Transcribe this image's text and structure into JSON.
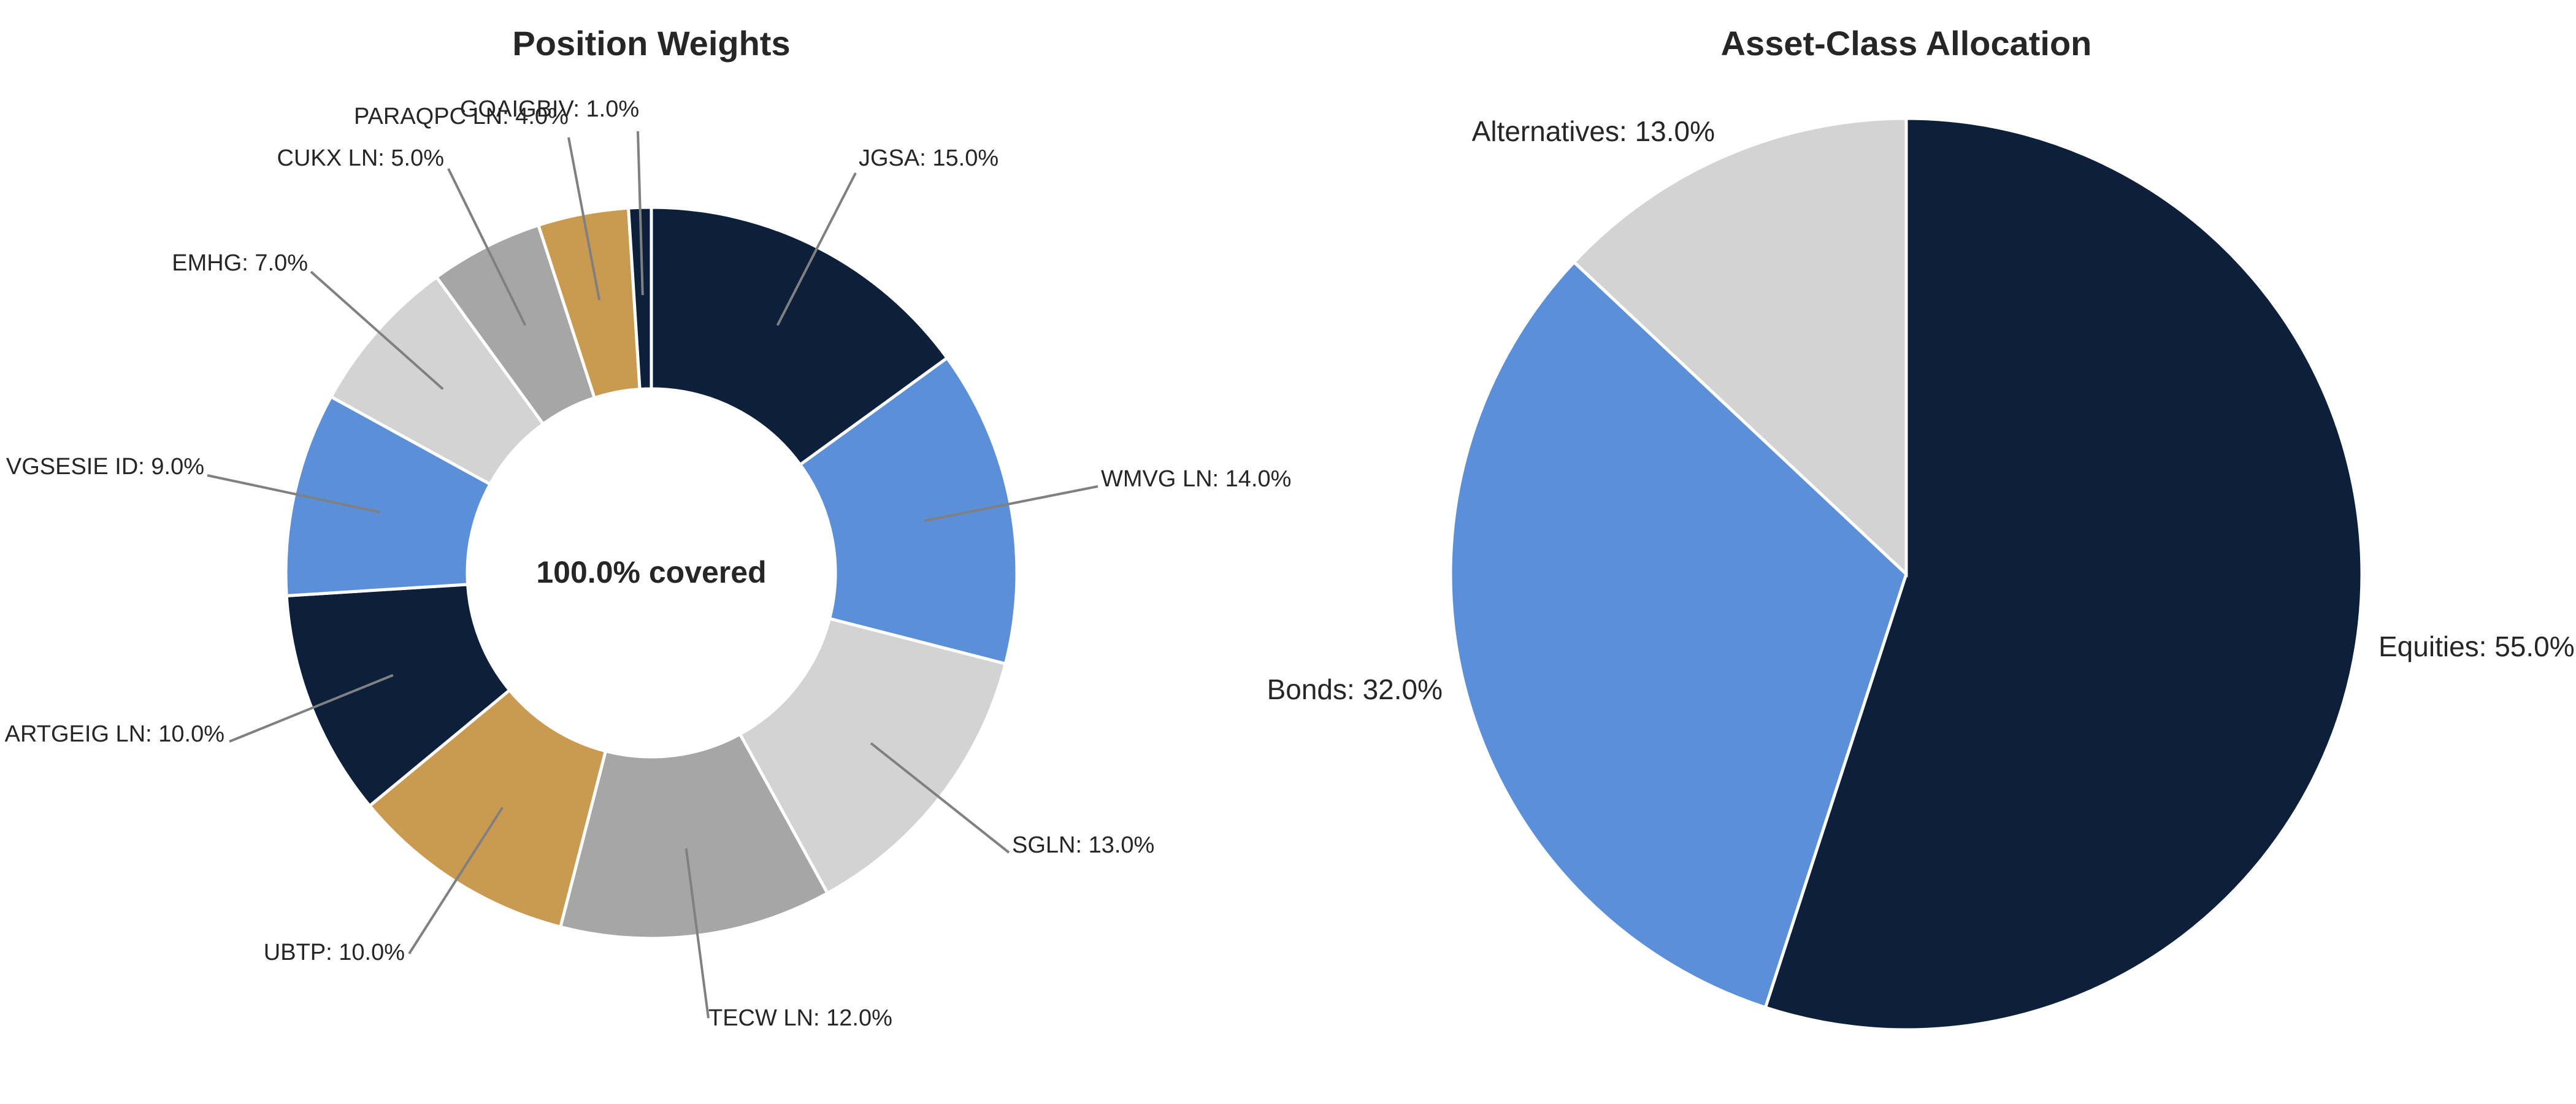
{
  "chart_data": [
    {
      "type": "pie",
      "style": "donut",
      "title": "Position Weights",
      "center_label": "100.0% covered",
      "start_angle_deg": 90,
      "direction": "clockwise",
      "slices": [
        {
          "label": "JGSA",
          "value": 15.0,
          "text": "JGSA: 15.0%",
          "color": "#0c1f3b"
        },
        {
          "label": "WMVG LN",
          "value": 14.0,
          "text": "WMVG LN: 14.0%",
          "color": "#5b8fd8"
        },
        {
          "label": "SGLN",
          "value": 13.0,
          "text": "SGLN: 13.0%",
          "color": "#d3d3d3"
        },
        {
          "label": "TECW LN",
          "value": 12.0,
          "text": "TECW LN: 12.0%",
          "color": "#a6a6a6"
        },
        {
          "label": "UBTP",
          "value": 10.0,
          "text": "UBTP: 10.0%",
          "color": "#c99a4f"
        },
        {
          "label": "ARTGEIG LN",
          "value": 10.0,
          "text": "ARTGEIG LN: 10.0%",
          "color": "#0c1f3b"
        },
        {
          "label": "VGSESIE ID",
          "value": 9.0,
          "text": "VGSESIE ID: 9.0%",
          "color": "#5b8fd8"
        },
        {
          "label": "EMHG",
          "value": 7.0,
          "text": "EMHG: 7.0%",
          "color": "#d3d3d3"
        },
        {
          "label": "CUKX LN",
          "value": 5.0,
          "text": "CUKX LN: 5.0%",
          "color": "#a6a6a6"
        },
        {
          "label": "PARAQPC LN",
          "value": 4.0,
          "text": "PARAQPC LN: 4.0%",
          "color": "#c99a4f"
        },
        {
          "label": "GOAIGBIV",
          "value": 1.0,
          "text": "GOAIGBIV: 1.0%",
          "color": "#0c1f3b"
        }
      ]
    },
    {
      "type": "pie",
      "title": "Asset-Class Allocation",
      "start_angle_deg": 90,
      "direction": "clockwise",
      "slices": [
        {
          "label": "Equities",
          "value": 55.0,
          "text": "Equities: 55.0%",
          "color": "#0c1f3b"
        },
        {
          "label": "Bonds",
          "value": 32.0,
          "text": "Bonds: 32.0%",
          "color": "#5b8fd8"
        },
        {
          "label": "Alternatives",
          "value": 13.0,
          "text": "Alternatives: 13.0%",
          "color": "#d3d3d3"
        }
      ]
    }
  ]
}
